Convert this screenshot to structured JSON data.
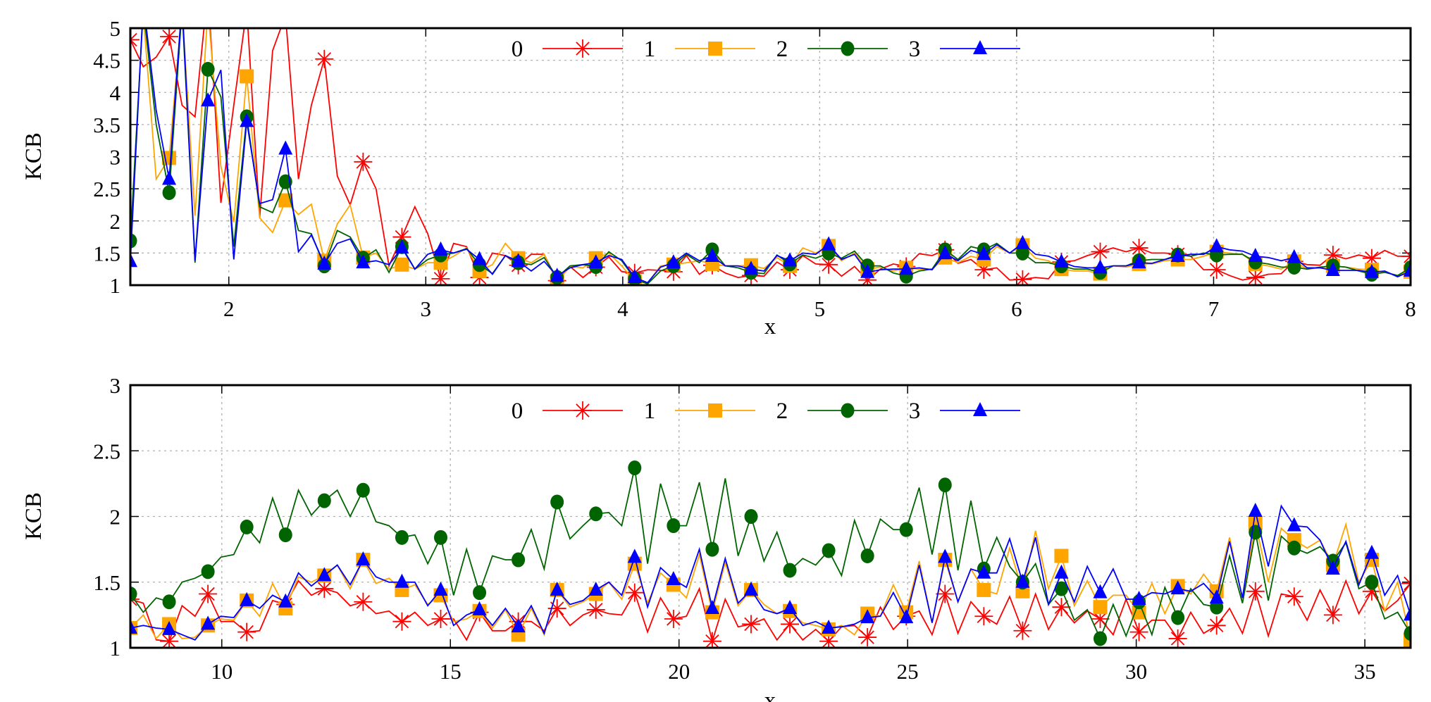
{
  "chart_data": [
    {
      "type": "line",
      "xlabel": "x",
      "ylabel": "KCB",
      "xlim": [
        1.5,
        8
      ],
      "ylim": [
        1,
        5
      ],
      "xticks": [
        "2",
        "3",
        "4",
        "5",
        "6",
        "7",
        "8"
      ],
      "xtick_values": [
        2,
        3,
        4,
        5,
        6,
        7,
        8
      ],
      "yticks": [
        "1",
        "1.5",
        "2",
        "2.5",
        "3",
        "3.5",
        "4",
        "4.5",
        "5"
      ],
      "ytick_values": [
        1,
        1.5,
        2,
        2.5,
        3,
        3.5,
        4,
        4.5,
        5
      ],
      "grid": true,
      "legend_position": "top-center",
      "x_start": 1.5,
      "x_end": 8,
      "n_points": 100,
      "marker_every": 3,
      "series": [
        {
          "name": "0",
          "color": "#ff0000",
          "marker": "asterisk",
          "values": [
            4.82,
            4.4,
            4.55,
            4.87,
            3.8,
            3.62,
            5.6,
            2.28,
            3.8,
            5.3,
            2.05,
            4.65,
            5.2,
            2.65,
            3.8,
            4.52,
            2.7,
            2.25,
            2.92,
            2.5,
            1.3,
            1.75,
            2.22,
            1.8,
            1.1,
            1.65,
            1.6,
            1.12,
            1.5,
            1.46,
            1.31,
            1.48,
            1.48,
            1.07,
            1.29,
            1.12,
            1.28,
            1.44,
            1.21,
            1.19,
            1.24,
            1.23,
            1.21,
            1.46,
            1.17,
            1.31,
            1.19,
            1.12,
            1.15,
            1.14,
            1.36,
            1.24,
            1.46,
            1.33,
            1.32,
            1.14,
            1.29,
            1.08,
            1.25,
            1.33,
            1.29,
            1.49,
            1.46,
            1.55,
            1.34,
            1.4,
            1.24,
            1.27,
            1.08,
            1.09,
            1.12,
            1.1,
            1.36,
            1.38,
            1.46,
            1.52,
            1.58,
            1.52,
            1.58,
            1.5,
            1.5,
            1.48,
            1.45,
            1.24,
            1.24,
            1.15,
            1.08,
            1.12,
            1.17,
            1.18,
            1.37,
            1.32,
            1.31,
            1.47,
            1.41,
            1.47,
            1.42,
            1.54,
            1.45,
            1.45
          ]
        },
        {
          "name": "1",
          "color": "#ffa500",
          "marker": "square",
          "values": [
            5.2,
            5.2,
            2.65,
            2.98,
            5.3,
            2.08,
            5.3,
            2.85,
            1.98,
            4.25,
            2.05,
            1.82,
            2.32,
            2.1,
            2.26,
            1.38,
            1.95,
            2.25,
            1.43,
            1.5,
            1.25,
            1.32,
            1.25,
            1.35,
            1.35,
            1.45,
            1.58,
            1.22,
            1.32,
            1.65,
            1.42,
            1.35,
            1.48,
            1.05,
            1.29,
            1.27,
            1.42,
            1.5,
            1.3,
            1.06,
            1.03,
            1.3,
            1.32,
            1.35,
            1.38,
            1.33,
            1.3,
            1.3,
            1.31,
            1.26,
            1.43,
            1.3,
            1.58,
            1.5,
            1.61,
            1.38,
            1.5,
            1.25,
            1.28,
            1.22,
            1.27,
            1.25,
            1.25,
            1.43,
            1.35,
            1.45,
            1.4,
            1.6,
            1.5,
            1.62,
            1.42,
            1.38,
            1.25,
            1.22,
            1.22,
            1.18,
            1.3,
            1.28,
            1.33,
            1.33,
            1.38,
            1.4,
            1.4,
            1.45,
            1.52,
            1.5,
            1.48,
            1.33,
            1.3,
            1.25,
            1.37,
            1.25,
            1.27,
            1.3,
            1.28,
            1.25,
            1.24,
            1.2,
            1.15,
            1.21
          ]
        },
        {
          "name": "2",
          "color": "#006400",
          "marker": "circle",
          "values": [
            1.69,
            5.3,
            3.5,
            2.44,
            5.3,
            1.35,
            4.36,
            3.93,
            1.6,
            3.62,
            2.22,
            2.13,
            2.61,
            1.85,
            1.8,
            1.3,
            1.85,
            1.75,
            1.42,
            1.55,
            1.2,
            1.6,
            1.25,
            1.4,
            1.47,
            1.5,
            1.57,
            1.32,
            1.18,
            1.46,
            1.35,
            1.32,
            1.43,
            1.12,
            1.3,
            1.32,
            1.29,
            1.52,
            1.38,
            1.1,
            1.02,
            1.22,
            1.3,
            1.48,
            1.35,
            1.55,
            1.3,
            1.27,
            1.2,
            1.18,
            1.47,
            1.33,
            1.47,
            1.42,
            1.5,
            1.42,
            1.53,
            1.3,
            1.3,
            1.19,
            1.14,
            1.22,
            1.25,
            1.55,
            1.4,
            1.6,
            1.55,
            1.65,
            1.5,
            1.5,
            1.35,
            1.35,
            1.3,
            1.25,
            1.25,
            1.2,
            1.3,
            1.3,
            1.38,
            1.4,
            1.4,
            1.47,
            1.45,
            1.5,
            1.47,
            1.48,
            1.48,
            1.36,
            1.33,
            1.28,
            1.28,
            1.25,
            1.28,
            1.3,
            1.28,
            1.22,
            1.17,
            1.2,
            1.15,
            1.27
          ]
        },
        {
          "name": "3",
          "color": "#0000ff",
          "marker": "triangle",
          "values": [
            1.37,
            5.4,
            3.72,
            2.65,
            5.4,
            1.38,
            3.87,
            4.35,
            1.4,
            3.55,
            2.27,
            2.33,
            3.12,
            1.52,
            1.78,
            1.33,
            1.65,
            1.72,
            1.35,
            1.38,
            1.32,
            1.58,
            1.25,
            1.48,
            1.55,
            1.5,
            1.56,
            1.4,
            1.17,
            1.46,
            1.37,
            1.22,
            1.37,
            1.14,
            1.27,
            1.32,
            1.35,
            1.46,
            1.4,
            1.12,
            1.04,
            1.28,
            1.35,
            1.5,
            1.38,
            1.45,
            1.3,
            1.3,
            1.25,
            1.22,
            1.46,
            1.38,
            1.5,
            1.48,
            1.63,
            1.4,
            1.48,
            1.2,
            1.24,
            1.25,
            1.25,
            1.27,
            1.24,
            1.49,
            1.38,
            1.54,
            1.48,
            1.63,
            1.5,
            1.65,
            1.48,
            1.45,
            1.36,
            1.29,
            1.27,
            1.27,
            1.3,
            1.3,
            1.35,
            1.34,
            1.4,
            1.45,
            1.48,
            1.48,
            1.6,
            1.55,
            1.53,
            1.45,
            1.43,
            1.38,
            1.43,
            1.27,
            1.27,
            1.23,
            1.23,
            1.23,
            1.2,
            1.22,
            1.13,
            1.22
          ]
        }
      ]
    },
    {
      "type": "line",
      "xlabel": "x",
      "ylabel": "KCB",
      "xlim": [
        8,
        36
      ],
      "ylim": [
        1,
        3
      ],
      "xticks": [
        "10",
        "15",
        "20",
        "25",
        "30",
        "35"
      ],
      "xtick_values": [
        10,
        15,
        20,
        25,
        30,
        35
      ],
      "yticks": [
        "1",
        "1.5",
        "2",
        "2.5",
        "3"
      ],
      "ytick_values": [
        1,
        1.5,
        2,
        2.5,
        3
      ],
      "grid": true,
      "legend_position": "top-center",
      "x_start": 8,
      "x_end": 36,
      "n_points": 100,
      "marker_every": 3,
      "series": [
        {
          "name": "0",
          "color": "#ff0000",
          "marker": "asterisk",
          "values": [
            1.37,
            1.34,
            1.06,
            1.05,
            1.32,
            1.24,
            1.41,
            1.2,
            1.2,
            1.12,
            1.13,
            1.36,
            1.33,
            1.51,
            1.4,
            1.45,
            1.42,
            1.32,
            1.35,
            1.26,
            1.28,
            1.2,
            1.27,
            1.17,
            1.22,
            1.22,
            1.06,
            1.27,
            1.13,
            1.13,
            1.2,
            1.2,
            1.13,
            1.3,
            1.17,
            1.25,
            1.29,
            1.26,
            1.25,
            1.42,
            1.12,
            1.38,
            1.22,
            1.24,
            1.45,
            1.05,
            1.37,
            1.16,
            1.18,
            1.22,
            1.06,
            1.18,
            1.06,
            1.14,
            1.05,
            1.16,
            1.17,
            1.08,
            1.31,
            1.14,
            1.24,
            1.28,
            1.1,
            1.41,
            1.11,
            1.35,
            1.24,
            1.18,
            1.39,
            1.13,
            1.41,
            1.14,
            1.31,
            1.19,
            1.28,
            1.22,
            1.1,
            1.37,
            1.12,
            1.21,
            1.21,
            1.07,
            1.27,
            1.11,
            1.17,
            1.3,
            1.11,
            1.43,
            1.09,
            1.41,
            1.39,
            1.21,
            1.44,
            1.25,
            1.51,
            1.26,
            1.43,
            1.28,
            1.36,
            1.49
          ]
        },
        {
          "name": "1",
          "color": "#ffa500",
          "marker": "square",
          "values": [
            1.15,
            1.25,
            1.07,
            1.18,
            1.07,
            1.08,
            1.17,
            1.22,
            1.21,
            1.36,
            1.24,
            1.49,
            1.3,
            1.54,
            1.5,
            1.55,
            1.63,
            1.45,
            1.67,
            1.49,
            1.53,
            1.44,
            1.48,
            1.33,
            1.4,
            1.2,
            1.22,
            1.28,
            1.15,
            1.29,
            1.1,
            1.3,
            1.1,
            1.44,
            1.31,
            1.35,
            1.41,
            1.5,
            1.37,
            1.64,
            1.34,
            1.57,
            1.48,
            1.38,
            1.71,
            1.27,
            1.65,
            1.32,
            1.44,
            1.33,
            1.26,
            1.28,
            1.19,
            1.17,
            1.14,
            1.17,
            1.1,
            1.26,
            1.24,
            1.48,
            1.27,
            1.66,
            1.19,
            1.67,
            1.35,
            1.6,
            1.44,
            1.41,
            1.76,
            1.43,
            1.89,
            1.45,
            1.7,
            1.32,
            1.51,
            1.31,
            1.4,
            1.4,
            1.27,
            1.49,
            1.26,
            1.47,
            1.41,
            1.56,
            1.43,
            1.84,
            1.37,
            1.95,
            1.5,
            1.91,
            1.82,
            1.76,
            1.82,
            1.63,
            1.94,
            1.5,
            1.67,
            1.28,
            1.5,
            1.06
          ]
        },
        {
          "name": "2",
          "color": "#006400",
          "marker": "circle",
          "values": [
            1.41,
            1.27,
            1.38,
            1.35,
            1.5,
            1.53,
            1.58,
            1.69,
            1.71,
            1.92,
            1.8,
            2.14,
            1.86,
            2.2,
            2.01,
            2.12,
            2.2,
            2.0,
            2.2,
            1.96,
            1.93,
            1.84,
            1.86,
            1.64,
            1.84,
            1.4,
            1.75,
            1.42,
            1.7,
            1.67,
            1.67,
            1.9,
            1.6,
            2.11,
            1.83,
            1.93,
            2.02,
            2.03,
            1.93,
            2.37,
            1.64,
            2.25,
            1.93,
            1.93,
            2.26,
            1.75,
            2.29,
            1.7,
            2.0,
            1.66,
            1.88,
            1.59,
            1.68,
            1.63,
            1.74,
            1.55,
            1.97,
            1.7,
            1.98,
            1.9,
            1.9,
            2.22,
            1.71,
            2.24,
            1.59,
            2.12,
            1.6,
            1.84,
            1.62,
            1.5,
            1.64,
            1.33,
            1.45,
            1.21,
            1.29,
            1.07,
            1.33,
            1.09,
            1.35,
            1.1,
            1.46,
            1.23,
            1.45,
            1.33,
            1.31,
            1.7,
            1.34,
            1.88,
            1.36,
            1.85,
            1.76,
            1.72,
            1.77,
            1.66,
            1.8,
            1.45,
            1.5,
            1.22,
            1.27,
            1.11
          ]
        },
        {
          "name": "3",
          "color": "#0000ff",
          "marker": "triangle",
          "values": [
            1.15,
            1.17,
            1.15,
            1.14,
            1.1,
            1.06,
            1.18,
            1.24,
            1.23,
            1.36,
            1.3,
            1.4,
            1.35,
            1.57,
            1.47,
            1.55,
            1.63,
            1.48,
            1.67,
            1.54,
            1.5,
            1.5,
            1.5,
            1.32,
            1.44,
            1.17,
            1.25,
            1.29,
            1.17,
            1.3,
            1.16,
            1.32,
            1.11,
            1.44,
            1.33,
            1.36,
            1.44,
            1.5,
            1.4,
            1.69,
            1.31,
            1.61,
            1.52,
            1.46,
            1.75,
            1.3,
            1.68,
            1.34,
            1.44,
            1.29,
            1.26,
            1.3,
            1.17,
            1.2,
            1.15,
            1.16,
            1.18,
            1.23,
            1.24,
            1.42,
            1.23,
            1.63,
            1.19,
            1.69,
            1.35,
            1.6,
            1.57,
            1.57,
            1.83,
            1.5,
            1.84,
            1.33,
            1.57,
            1.35,
            1.62,
            1.42,
            1.6,
            1.37,
            1.37,
            1.42,
            1.41,
            1.45,
            1.43,
            1.49,
            1.38,
            1.81,
            1.38,
            2.04,
            1.62,
            2.08,
            1.93,
            1.92,
            1.82,
            1.6,
            1.81,
            1.48,
            1.72,
            1.4,
            1.55,
            1.25
          ]
        }
      ]
    }
  ]
}
